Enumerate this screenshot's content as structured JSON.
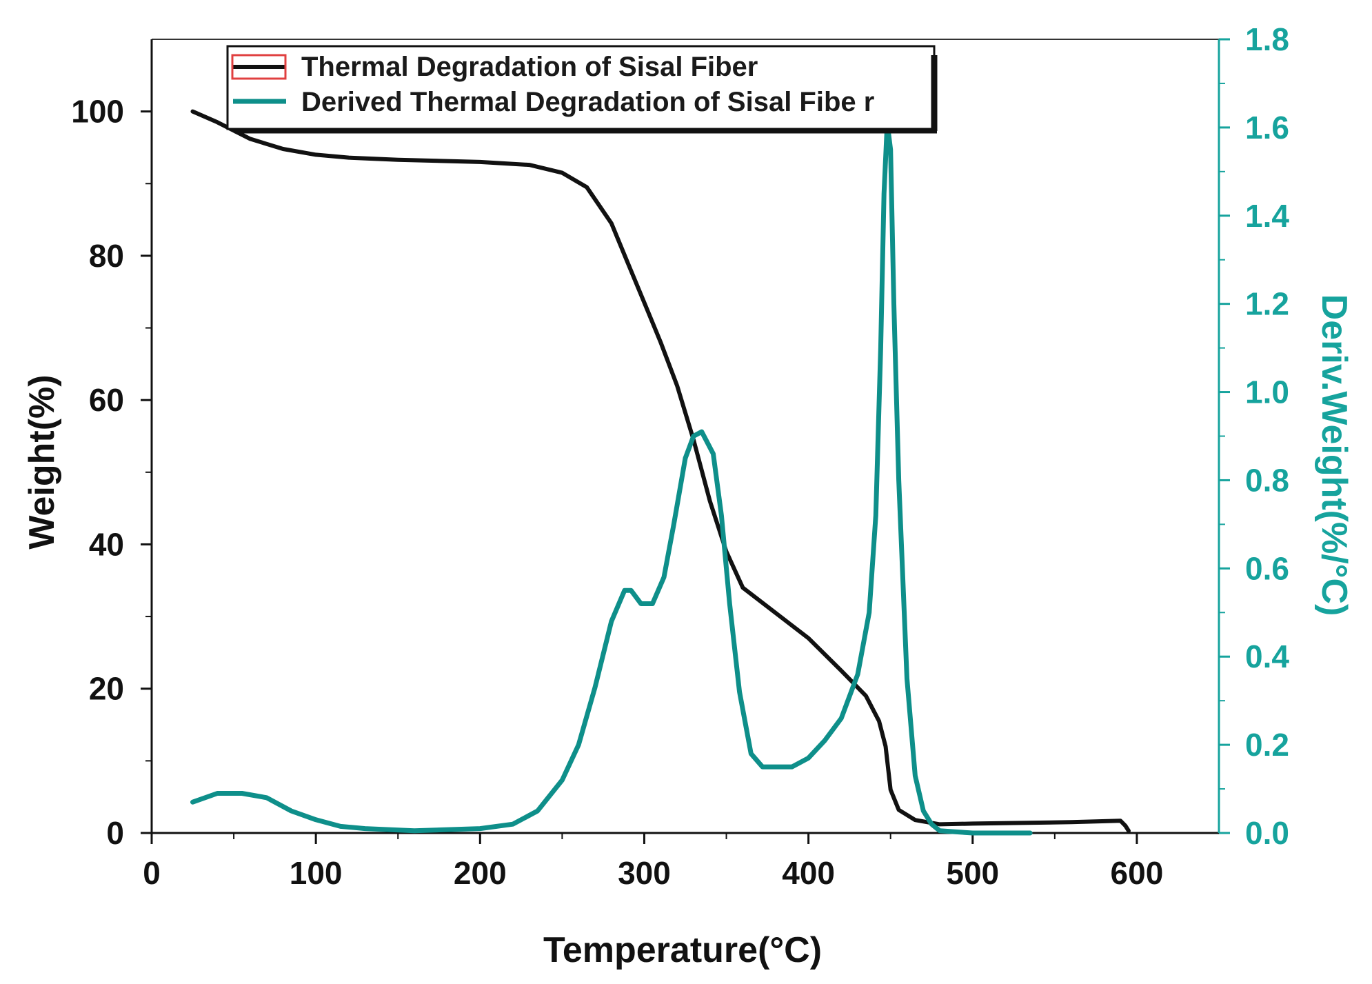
{
  "chart_data": {
    "type": "line",
    "title": "",
    "xlabel": "Temperature(°C)",
    "ylabel": "Weight(%)",
    "y2label": "Deriv.Weight(%/°C)",
    "xlim": [
      0,
      650
    ],
    "ylim": [
      0,
      110
    ],
    "y2lim": [
      0,
      1.8
    ],
    "xticks": [
      0,
      100,
      200,
      300,
      400,
      500,
      600
    ],
    "yticks": [
      0,
      20,
      40,
      60,
      80,
      100
    ],
    "y2ticks": [
      0.0,
      0.2,
      0.4,
      0.6,
      0.8,
      1.0,
      1.2,
      1.4,
      1.6,
      1.8
    ],
    "xtick_labels": [
      "0",
      "100",
      "200",
      "300",
      "400",
      "500",
      "600"
    ],
    "ytick_labels": [
      "0",
      "20",
      "40",
      "60",
      "80",
      "100"
    ],
    "y2tick_labels": [
      "0.0",
      "0.2",
      "0.4",
      "0.6",
      "0.8",
      "1.0",
      "1.2",
      "1.4",
      "1.6",
      "1.8"
    ],
    "legend_position": "top-left",
    "colors": {
      "tg": "#111111",
      "dtg": "#0e8f8a",
      "legend_marker_edge": "#e04040",
      "axis_right": "#16a39d"
    },
    "series": [
      {
        "name": "Thermal Degradation of Sisal Fiber",
        "axis": "left",
        "x": [
          25,
          40,
          60,
          80,
          100,
          120,
          150,
          200,
          230,
          250,
          265,
          280,
          290,
          300,
          310,
          320,
          330,
          340,
          350,
          360,
          380,
          400,
          420,
          435,
          443,
          447,
          450,
          455,
          465,
          480,
          500,
          560,
          590,
          593,
          595
        ],
        "y": [
          100,
          98.5,
          96.2,
          94.8,
          94.0,
          93.6,
          93.3,
          93.0,
          92.6,
          91.5,
          89.5,
          84.5,
          79.0,
          73.5,
          68.0,
          62.0,
          54.5,
          46.0,
          39.0,
          34.0,
          30.5,
          27.0,
          22.5,
          19.0,
          15.5,
          12.0,
          6.0,
          3.2,
          1.8,
          1.2,
          1.3,
          1.5,
          1.7,
          1.0,
          0.3
        ]
      },
      {
        "name": "Derived Thermal Degradation of Sisal Fibe r",
        "axis": "right",
        "x": [
          25,
          40,
          55,
          70,
          85,
          100,
          115,
          130,
          160,
          200,
          220,
          235,
          250,
          260,
          270,
          280,
          288,
          292,
          298,
          305,
          312,
          318,
          325,
          330,
          335,
          342,
          347,
          352,
          358,
          365,
          372,
          380,
          390,
          400,
          410,
          420,
          430,
          437,
          441,
          444,
          446,
          448,
          450,
          452,
          455,
          460,
          465,
          470,
          475,
          480,
          500,
          535
        ],
        "y": [
          0.07,
          0.09,
          0.09,
          0.08,
          0.05,
          0.03,
          0.015,
          0.01,
          0.005,
          0.01,
          0.02,
          0.05,
          0.12,
          0.2,
          0.33,
          0.48,
          0.55,
          0.55,
          0.52,
          0.52,
          0.58,
          0.7,
          0.85,
          0.9,
          0.91,
          0.86,
          0.72,
          0.52,
          0.32,
          0.18,
          0.15,
          0.15,
          0.15,
          0.17,
          0.21,
          0.26,
          0.36,
          0.5,
          0.72,
          1.1,
          1.45,
          1.61,
          1.55,
          1.2,
          0.8,
          0.35,
          0.13,
          0.05,
          0.02,
          0.005,
          0.0,
          0.0
        ]
      }
    ]
  }
}
